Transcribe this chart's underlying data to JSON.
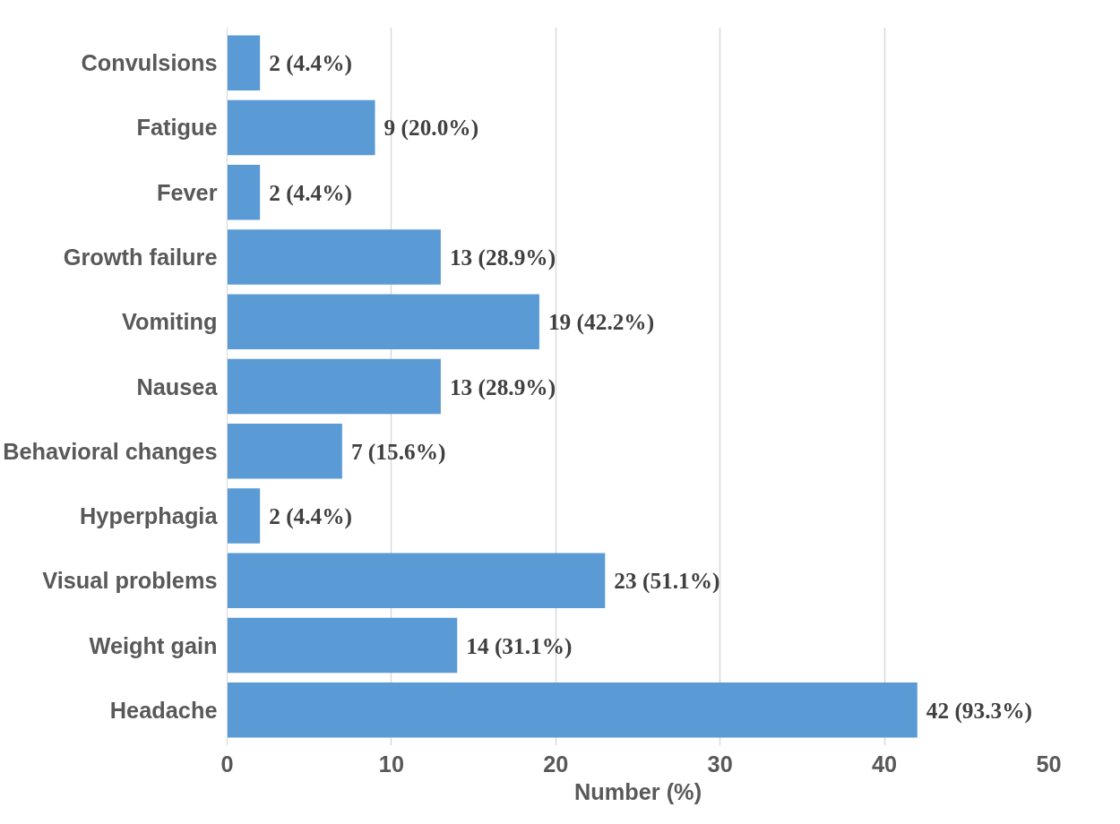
{
  "chart_data": {
    "type": "bar",
    "orientation": "horizontal",
    "xlabel": "Number (%)",
    "categories": [
      "Convulsions",
      "Fatigue",
      "Fever",
      "Growth failure",
      "Vomiting",
      "Nausea",
      "Behavioral changes",
      "Hyperphagia",
      "Visual problems",
      "Weight gain",
      "Headache"
    ],
    "values": [
      2,
      9,
      2,
      13,
      19,
      13,
      7,
      2,
      23,
      14,
      42
    ],
    "value_labels": [
      "2 (4.4%)",
      "9 (20.0%)",
      "2 (4.4%)",
      "13 (28.9%)",
      "19 (42.2%)",
      "13 (28.9%)",
      "7 (15.6%)",
      "2 (4.4%)",
      "23 (51.1%)",
      "14 (31.1%)",
      "42 (93.3%)"
    ],
    "color": "#5b9bd5",
    "xlim": [
      0,
      50
    ],
    "xticks": [
      0,
      10,
      20,
      30,
      40,
      50
    ],
    "grid": "x"
  }
}
